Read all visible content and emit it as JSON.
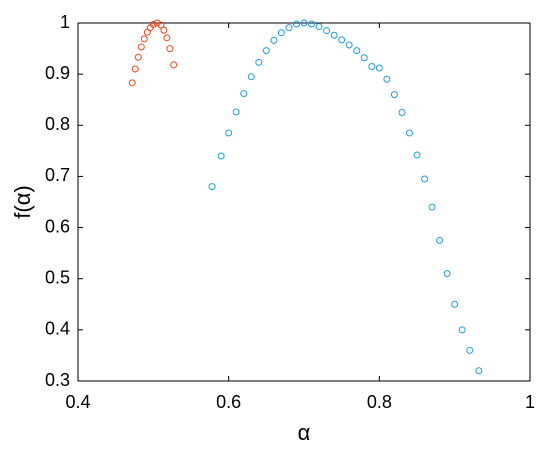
{
  "chart_data": {
    "type": "scatter",
    "xlabel": "α",
    "ylabel": "f(α)",
    "xlim": [
      0.4,
      1
    ],
    "ylim": [
      0.3,
      1
    ],
    "xticks": [
      0.4,
      0.6,
      0.8,
      1
    ],
    "yticks": [
      0.3,
      0.4,
      0.5,
      0.6,
      0.7,
      0.8,
      0.9,
      1
    ],
    "marker": "open-circle",
    "series": [
      {
        "color": "#e8481c",
        "x": [
          0.472,
          0.476,
          0.48,
          0.484,
          0.488,
          0.492,
          0.496,
          0.5,
          0.505,
          0.51,
          0.514,
          0.518,
          0.522,
          0.527
        ],
        "values": [
          0.883,
          0.91,
          0.933,
          0.953,
          0.969,
          0.982,
          0.991,
          0.997,
          1.0,
          0.996,
          0.986,
          0.971,
          0.95,
          0.918
        ]
      },
      {
        "color": "#1f9fd6",
        "x": [
          0.578,
          0.59,
          0.6,
          0.61,
          0.62,
          0.63,
          0.64,
          0.65,
          0.66,
          0.67,
          0.68,
          0.69,
          0.7,
          0.71,
          0.72,
          0.73,
          0.74,
          0.75,
          0.76,
          0.77,
          0.78,
          0.79,
          0.8,
          0.81,
          0.82,
          0.83,
          0.84,
          0.85,
          0.86,
          0.87,
          0.88,
          0.89,
          0.9,
          0.91,
          0.92,
          0.932
        ],
        "values": [
          0.68,
          0.74,
          0.785,
          0.826,
          0.862,
          0.895,
          0.923,
          0.946,
          0.966,
          0.981,
          0.991,
          0.998,
          1.0,
          0.998,
          0.993,
          0.985,
          0.976,
          0.967,
          0.957,
          0.946,
          0.932,
          0.915,
          0.912,
          0.89,
          0.86,
          0.825,
          0.785,
          0.742,
          0.695,
          0.64,
          0.575,
          0.51,
          0.45,
          0.4,
          0.36,
          0.32
        ]
      }
    ]
  }
}
